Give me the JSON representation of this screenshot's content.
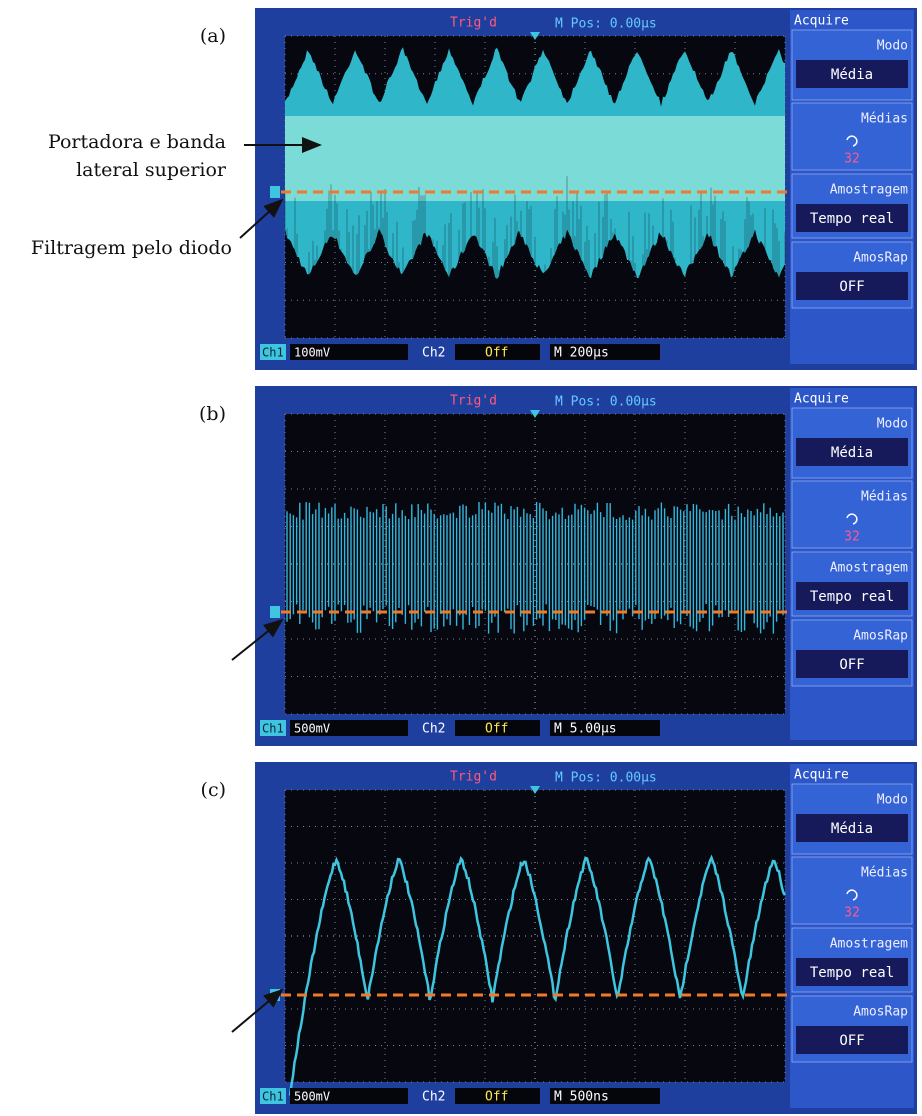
{
  "panels": [
    {
      "label": "(a)",
      "trigger": "Trig'd",
      "position": "M Pos: 0.00µs",
      "menu": {
        "title": "Acquire",
        "items": [
          {
            "label": "Modo",
            "value": "Média"
          },
          {
            "label": "Médias",
            "value": "32"
          },
          {
            "label": "Amostragem",
            "value": "Tempo real"
          },
          {
            "label": "AmosRap",
            "value": "OFF"
          }
        ]
      },
      "status": {
        "ch1_label": "Ch1",
        "ch1": "100mV",
        "ch2_label": "Ch2",
        "ch2": "Off",
        "time": "M 200µs"
      }
    },
    {
      "label": "(b)",
      "trigger": "Trig'd",
      "position": "M Pos: 0.00µs",
      "menu": {
        "title": "Acquire",
        "items": [
          {
            "label": "Modo",
            "value": "Média"
          },
          {
            "label": "Médias",
            "value": "32"
          },
          {
            "label": "Amostragem",
            "value": "Tempo real"
          },
          {
            "label": "AmosRap",
            "value": "OFF"
          }
        ]
      },
      "status": {
        "ch1_label": "Ch1",
        "ch1": "500mV",
        "ch2_label": "Ch2",
        "ch2": "Off",
        "time": "M 5.00µs"
      }
    },
    {
      "label": "(c)",
      "trigger": "Trig'd",
      "position": "M Pos: 0.00µs",
      "menu": {
        "title": "Acquire",
        "items": [
          {
            "label": "Modo",
            "value": "Média"
          },
          {
            "label": "Médias",
            "value": "32"
          },
          {
            "label": "Amostragem",
            "value": "Tempo real"
          },
          {
            "label": "AmosRap",
            "value": "OFF"
          }
        ]
      },
      "status": {
        "ch1_label": "Ch1",
        "ch1": "500mV",
        "ch2_label": "Ch2",
        "ch2": "Off",
        "time": "M 500ns"
      }
    }
  ],
  "annotations": {
    "carrier": [
      "Portadora e banda",
      "lateral superior"
    ],
    "diode": "Filtragem pelo diodo"
  }
}
